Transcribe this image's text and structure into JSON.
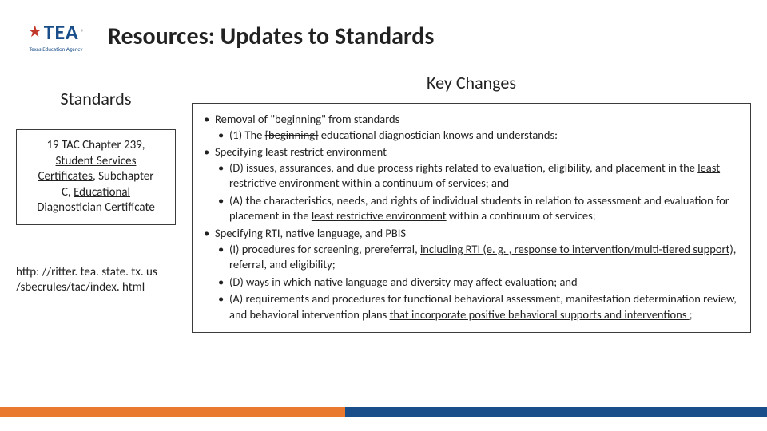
{
  "header": {
    "logo": {
      "mainText": "TEA",
      "subText": "Texas Education Agency",
      "trademark": "®"
    },
    "title": "Resources: Updates to Standards"
  },
  "left": {
    "heading": "Standards",
    "tac": {
      "line1": "19 TAC Chapter 239,",
      "line2_underline": "Student Services",
      "line3_underline": "Certificates",
      "line3_rest": ", Subchapter",
      "line4": "C, ",
      "line4_underline": "Educational",
      "line5_underline": "Diagnostician Certificate"
    },
    "url_line1": "http: //ritter. tea. state. tx. us",
    "url_line2": "/sbecrules/tac/index. html"
  },
  "right": {
    "heading": "Key Changes",
    "items": {
      "a": "Removal of \"beginning\" from standards",
      "a1_pre": "(1) The ",
      "a1_strike": "[beginning]",
      "a1_post": " educational diagnostician knows and understands:",
      "b": "Specifying least restrict environment",
      "b1_pre": "(D) issues, assurances, and due process rights related to evaluation, eligibility, and placement in the ",
      "b1_u": "least restrictive environment ",
      "b1_post": "within a continuum of services; and",
      "b2_pre": "(A) the characteristics, needs, and rights of individual students in relation to assessment and evaluation for placement in the ",
      "b2_u": "least restrictive environment",
      "b2_post": " within a continuum of services;",
      "c": "Specifying RTI, native language, and PBIS",
      "c1_pre": "(I) procedures for screening, prereferral, ",
      "c1_u": "including RTI (e. g. , response to intervention/multi-tiered support),",
      "c1_post": " referral, and eligibility;",
      "c2_pre": "(D) ways in which ",
      "c2_u": "native language ",
      "c2_post": "and diversity may affect evaluation; and",
      "c3_pre": "(A) requirements and procedures for functional behavioral assessment, manifestation determination review, and behavioral intervention plans ",
      "c3_u": "that incorporate positive behavioral supports and interventions ",
      "c3_post": ";"
    }
  },
  "colors": {
    "orange": "#e8792f",
    "blue": "#1a4e8a",
    "red": "#c0392b",
    "boxBorder": "#3b3b3b"
  }
}
